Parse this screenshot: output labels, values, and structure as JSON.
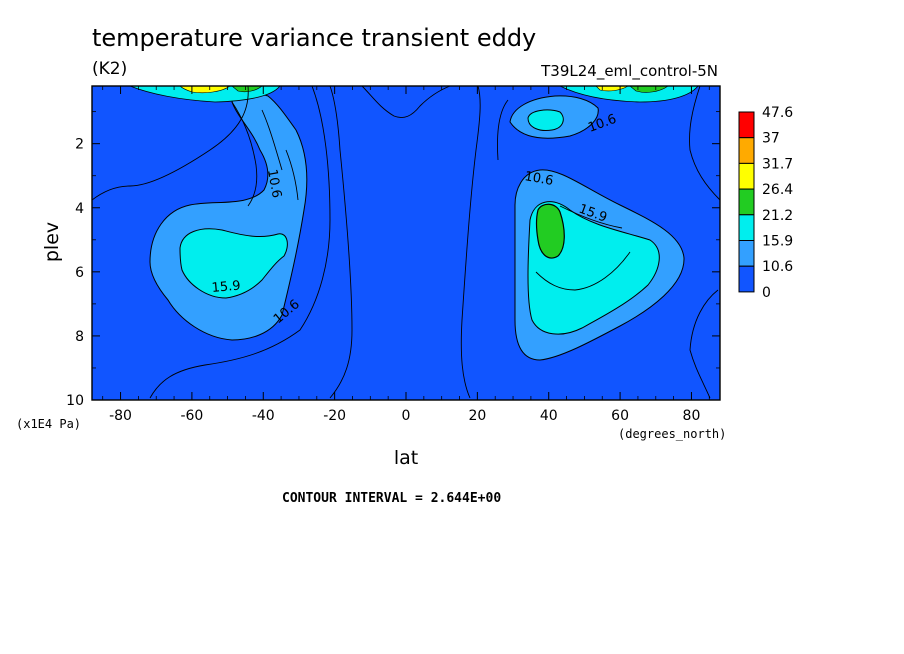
{
  "chart_data": {
    "type": "contour",
    "title": "temperature variance transient eddy",
    "units": "(K2)",
    "run_id": "T39L24_eml_control-5N",
    "xlabel": "lat",
    "xlabel_units": "(degrees_north)",
    "ylabel": "plev",
    "ylabel_units": "(x1E4 Pa)",
    "xlim": [
      -88,
      88
    ],
    "ylim": [
      10,
      0.2
    ],
    "x_ticks": [
      -80,
      -60,
      -40,
      -20,
      0,
      20,
      40,
      60,
      80
    ],
    "x_tick_labels": [
      "-80",
      "-60",
      "-40",
      "-20",
      "0",
      "20",
      "40",
      "60",
      "80"
    ],
    "y_ticks": [
      2,
      4,
      6,
      8,
      10
    ],
    "y_tick_labels": [
      "2",
      "4",
      "6",
      "8",
      "10"
    ],
    "colorbar_levels": [
      "0",
      "10.6",
      "15.9",
      "21.2",
      "26.4",
      "31.7",
      "37",
      "47.6"
    ],
    "colorbar_colors": [
      "#1155ff",
      "#33a0ff",
      "#00eeee",
      "#22cc22",
      "#ffff00",
      "#ffaa00",
      "#ff0000"
    ],
    "contour_interval": "CONTOUR INTERVAL = 2.644E+00",
    "contour_labels": [
      {
        "text": "10.6",
        "x": -36.5,
        "y": 3.1,
        "angle": 80
      },
      {
        "text": "15.9",
        "x": -52,
        "y": 6.5,
        "angle": -5
      },
      {
        "text": "10.6",
        "x": -34,
        "y": 7.6,
        "angle": -40
      },
      {
        "text": "10.6",
        "x": 59,
        "y": 1.4,
        "angle": -20
      },
      {
        "text": "10.6",
        "x": 37,
        "y": 3.0,
        "angle": 10
      },
      {
        "text": "15.9",
        "x": 54,
        "y": 4.2,
        "angle": 20
      }
    ],
    "grid": false,
    "legend": "right colorbar"
  }
}
